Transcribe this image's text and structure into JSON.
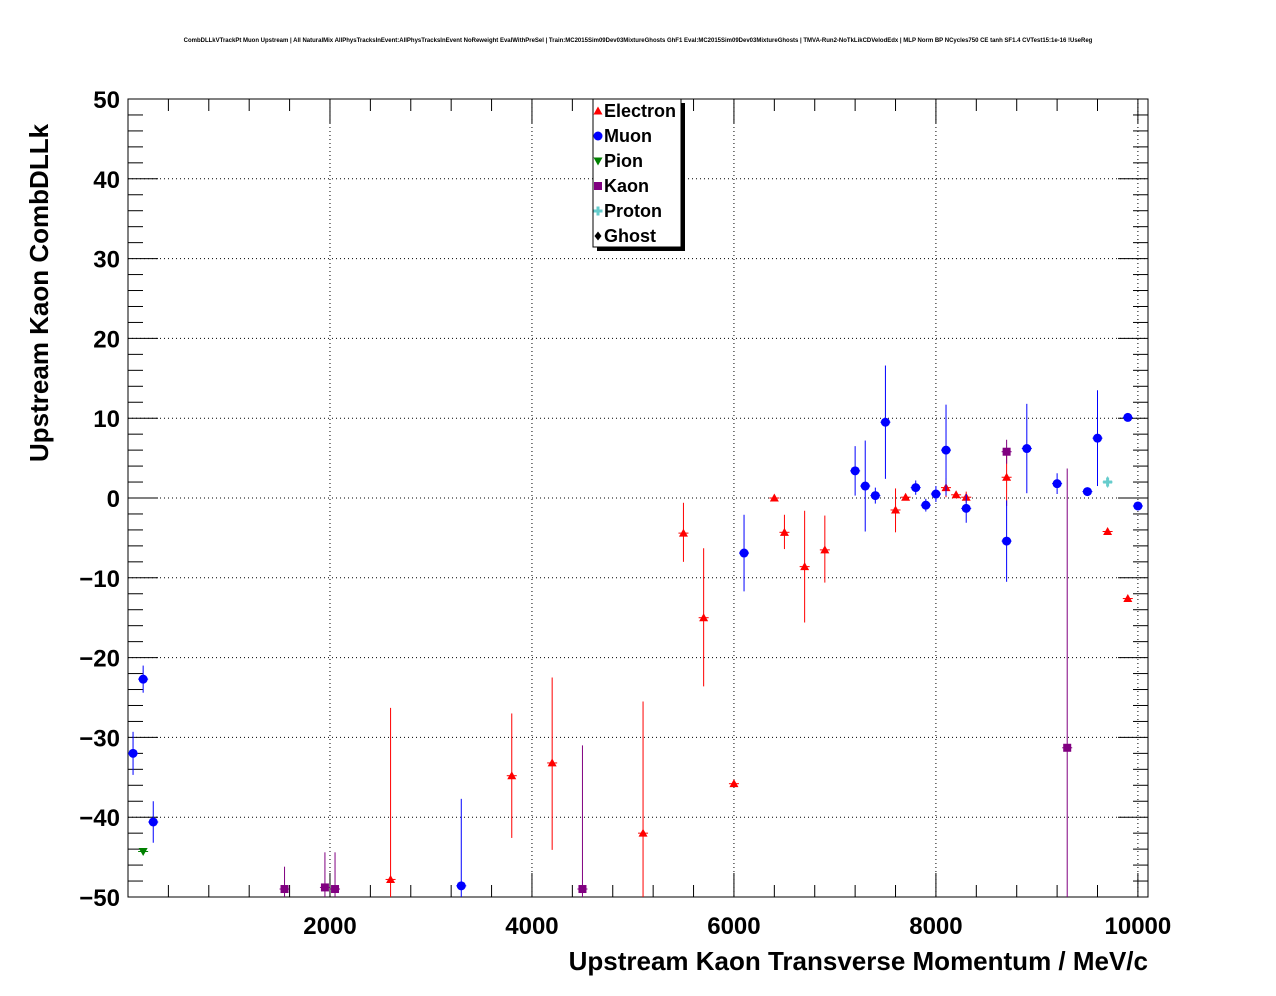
{
  "chart_data": {
    "type": "scatter",
    "title": "CombDLLkVTrackPt Muon Upstream | All NaturalMix AllPhysTracksInEvent:AllPhysTracksInEvent NoReweight EvalWithPreSel | Train:MC2015Sim09Dev03MixtureGhosts GhF1 Eval:MC2015Sim09Dev03MixtureGhosts | TMVA-Run2-NoTkLikCDVelodEdx | MLP Norm BP NCycles750 CE tanh SF1.4 CVTest15:1e-16 !UseReg",
    "xlabel": "Upstream Kaon Transverse Momentum / MeV/c",
    "ylabel": "Upstream Kaon CombDLLk",
    "xlim": [
      0,
      10100
    ],
    "ylim": [
      -50,
      50
    ],
    "xticks": [
      "2000",
      "4000",
      "6000",
      "8000",
      "10000"
    ],
    "yticks": [
      "50",
      "40",
      "30",
      "20",
      "10",
      "0",
      "−10",
      "−20",
      "−30",
      "−40",
      "−50"
    ],
    "grid": true,
    "legend_position": "top-center",
    "series": [
      {
        "name": "Electron",
        "color": "#ff0000",
        "marker": "triangle-up",
        "points": [
          {
            "x": 2600,
            "y": -47.8,
            "lo": -50,
            "hi": -26.3
          },
          {
            "x": 3800,
            "y": -34.8,
            "lo": -42.6,
            "hi": -27.0
          },
          {
            "x": 4200,
            "y": -33.2,
            "lo": -44.1,
            "hi": -22.5
          },
          {
            "x": 5100,
            "y": -42.0,
            "lo": -50,
            "hi": -25.5
          },
          {
            "x": 5500,
            "y": -4.4,
            "lo": -8.0,
            "hi": -0.6
          },
          {
            "x": 5700,
            "y": -15.0,
            "lo": -23.6,
            "hi": -6.3
          },
          {
            "x": 6000,
            "y": -35.8,
            "lo": -36.2,
            "hi": -35.4
          },
          {
            "x": 6400,
            "y": 0.0,
            "lo": -0.4,
            "hi": 0.4
          },
          {
            "x": 6500,
            "y": -4.3,
            "lo": -6.4,
            "hi": -2.1
          },
          {
            "x": 6700,
            "y": -8.6,
            "lo": -15.6,
            "hi": -1.6
          },
          {
            "x": 6900,
            "y": -6.5,
            "lo": -10.6,
            "hi": -2.2
          },
          {
            "x": 7600,
            "y": -1.5,
            "lo": -4.3,
            "hi": 1.2
          },
          {
            "x": 7700,
            "y": 0.1,
            "lo": -0.3,
            "hi": 0.5
          },
          {
            "x": 8100,
            "y": 1.3,
            "lo": 0.1,
            "hi": 2.5
          },
          {
            "x": 8200,
            "y": 0.4,
            "lo": 0.0,
            "hi": 0.8
          },
          {
            "x": 8300,
            "y": 0.1,
            "lo": -0.6,
            "hi": 0.8
          },
          {
            "x": 8700,
            "y": 2.6,
            "lo": -1.0,
            "hi": 6.2
          },
          {
            "x": 9700,
            "y": -4.2,
            "lo": -4.6,
            "hi": -3.8
          },
          {
            "x": 9900,
            "y": -12.6,
            "lo": -13.0,
            "hi": -12.2
          }
        ]
      },
      {
        "name": "Muon",
        "color": "#0000ff",
        "marker": "circle",
        "points": [
          {
            "x": 50,
            "y": -32.0,
            "lo": -34.7,
            "hi": -29.3
          },
          {
            "x": 150,
            "y": -22.7,
            "lo": -24.4,
            "hi": -21.0
          },
          {
            "x": 250,
            "y": -40.6,
            "lo": -43.2,
            "hi": -38.0
          },
          {
            "x": 3300,
            "y": -48.6,
            "lo": -50,
            "hi": -37.7
          },
          {
            "x": 6100,
            "y": -6.9,
            "lo": -11.7,
            "hi": -2.1
          },
          {
            "x": 7200,
            "y": 3.4,
            "lo": 0.3,
            "hi": 6.5
          },
          {
            "x": 7300,
            "y": 1.5,
            "lo": -4.2,
            "hi": 7.2
          },
          {
            "x": 7400,
            "y": 0.3,
            "lo": -0.7,
            "hi": 1.3
          },
          {
            "x": 7500,
            "y": 9.5,
            "lo": 2.4,
            "hi": 16.6
          },
          {
            "x": 7800,
            "y": 1.3,
            "lo": 0.4,
            "hi": 2.2
          },
          {
            "x": 7900,
            "y": -0.9,
            "lo": -1.7,
            "hi": -0.1
          },
          {
            "x": 8000,
            "y": 0.5,
            "lo": -0.5,
            "hi": 1.5
          },
          {
            "x": 8100,
            "y": 6.0,
            "lo": 0.3,
            "hi": 11.7
          },
          {
            "x": 8300,
            "y": -1.3,
            "lo": -3.1,
            "hi": 0.5
          },
          {
            "x": 8700,
            "y": -5.4,
            "lo": -10.5,
            "hi": -0.3
          },
          {
            "x": 8900,
            "y": 6.2,
            "lo": 0.6,
            "hi": 11.8
          },
          {
            "x": 9200,
            "y": 1.8,
            "lo": 0.5,
            "hi": 3.1
          },
          {
            "x": 9500,
            "y": 0.8,
            "lo": 0.4,
            "hi": 1.2
          },
          {
            "x": 9600,
            "y": 7.5,
            "lo": 1.5,
            "hi": 13.5
          },
          {
            "x": 9900,
            "y": 10.1,
            "lo": 9.6,
            "hi": 10.6
          },
          {
            "x": 10000,
            "y": -1.0,
            "lo": -1.4,
            "hi": -0.6
          }
        ]
      },
      {
        "name": "Pion",
        "color": "#008000",
        "marker": "triangle-down",
        "points": [
          {
            "x": 150,
            "y": -44.3,
            "lo": -44.6,
            "hi": -44.0
          }
        ]
      },
      {
        "name": "Kaon",
        "color": "#800080",
        "marker": "square",
        "points": [
          {
            "x": 1550,
            "y": -49.0,
            "lo": -50,
            "hi": -46.2
          },
          {
            "x": 1950,
            "y": -48.8,
            "lo": -50,
            "hi": -44.4
          },
          {
            "x": 2050,
            "y": -49.0,
            "lo": -50,
            "hi": -44.4
          },
          {
            "x": 4500,
            "y": -49.0,
            "lo": -50,
            "hi": -31.0
          },
          {
            "x": 8700,
            "y": 5.8,
            "lo": 4.3,
            "hi": 7.3
          },
          {
            "x": 9300,
            "y": -31.3,
            "lo": -50,
            "hi": 3.7
          }
        ]
      },
      {
        "name": "Proton",
        "color": "#66cccc",
        "marker": "cross",
        "points": [
          {
            "x": 9700,
            "y": 2.0,
            "lo": 1.3,
            "hi": 2.7
          }
        ]
      },
      {
        "name": "Ghost",
        "color": "#000000",
        "marker": "diamond",
        "points": []
      }
    ]
  }
}
